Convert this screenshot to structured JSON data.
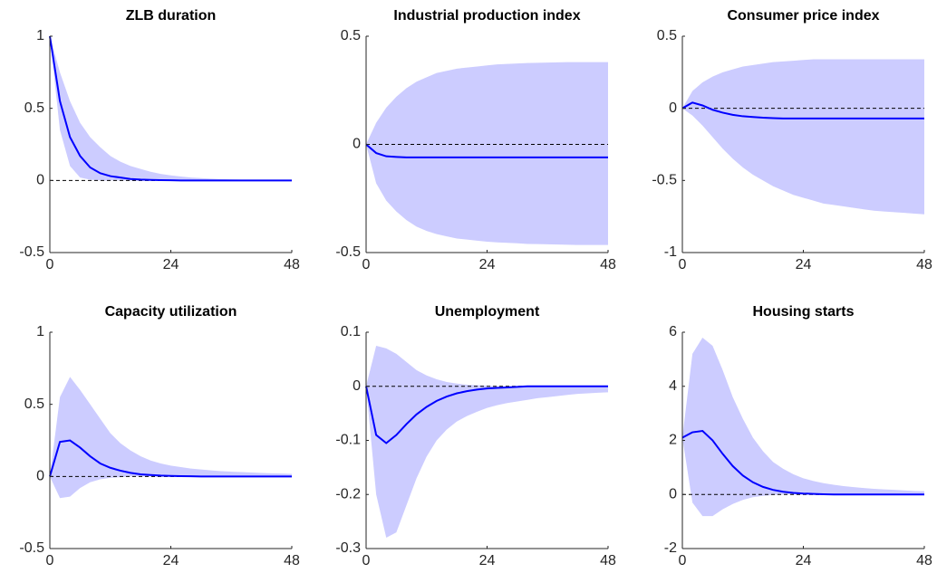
{
  "chart_data": [
    {
      "type": "line",
      "title": "ZLB duration",
      "color": "#0000ff",
      "band_color": "#ccccff",
      "hline": 0,
      "x": [
        0,
        2,
        4,
        6,
        8,
        10,
        12,
        14,
        16,
        18,
        20,
        22,
        24,
        26,
        28,
        30,
        32,
        34,
        36,
        38,
        40,
        42,
        44,
        46,
        48
      ],
      "values": [
        1,
        0.55,
        0.3,
        0.17,
        0.09,
        0.05,
        0.03,
        0.02,
        0.01,
        0.006,
        0.004,
        0.002,
        0.001,
        0,
        0,
        0,
        0,
        0,
        0,
        0,
        0,
        0,
        0,
        0,
        0
      ],
      "upper": [
        1,
        0.75,
        0.55,
        0.4,
        0.3,
        0.23,
        0.17,
        0.13,
        0.1,
        0.08,
        0.06,
        0.045,
        0.035,
        0.027,
        0.02,
        0.016,
        0.012,
        0.009,
        0.007,
        0.005,
        0.004,
        0.003,
        0.002,
        0.002,
        0.001
      ],
      "lower": [
        1,
        0.35,
        0.1,
        0.02,
        0.005,
        0,
        0,
        0,
        0,
        0,
        0,
        0,
        0,
        0,
        0,
        0,
        0,
        0,
        0,
        0,
        0,
        0,
        0,
        0,
        0
      ],
      "xlim": [
        0,
        48
      ],
      "xticks": [
        0,
        24,
        48
      ],
      "ylim": [
        -0.5,
        1
      ],
      "yticks": [
        -0.5,
        0,
        0.5,
        1
      ]
    },
    {
      "type": "line",
      "title": "Industrial production index",
      "color": "#0000ff",
      "band_color": "#ccccff",
      "hline": 0,
      "x": [
        0,
        2,
        4,
        6,
        8,
        10,
        12,
        14,
        16,
        18,
        20,
        22,
        24,
        26,
        28,
        30,
        32,
        34,
        36,
        38,
        40,
        42,
        44,
        46,
        48
      ],
      "values": [
        0,
        -0.04,
        -0.055,
        -0.058,
        -0.06,
        -0.06,
        -0.06,
        -0.06,
        -0.06,
        -0.06,
        -0.06,
        -0.06,
        -0.06,
        -0.06,
        -0.06,
        -0.06,
        -0.06,
        -0.06,
        -0.06,
        -0.06,
        -0.06,
        -0.06,
        -0.06,
        -0.06,
        -0.06
      ],
      "upper": [
        0,
        0.1,
        0.17,
        0.22,
        0.26,
        0.29,
        0.31,
        0.33,
        0.34,
        0.35,
        0.355,
        0.36,
        0.365,
        0.37,
        0.372,
        0.374,
        0.376,
        0.377,
        0.378,
        0.379,
        0.38,
        0.38,
        0.38,
        0.38,
        0.38
      ],
      "lower": [
        0,
        -0.18,
        -0.26,
        -0.31,
        -0.35,
        -0.38,
        -0.4,
        -0.415,
        -0.425,
        -0.435,
        -0.44,
        -0.445,
        -0.45,
        -0.453,
        -0.455,
        -0.457,
        -0.46,
        -0.461,
        -0.462,
        -0.463,
        -0.464,
        -0.465,
        -0.465,
        -0.465,
        -0.465
      ],
      "xlim": [
        0,
        48
      ],
      "xticks": [
        0,
        24,
        48
      ],
      "ylim": [
        -0.5,
        0.5
      ],
      "yticks": [
        -0.5,
        0,
        0.5
      ]
    },
    {
      "type": "line",
      "title": "Consumer price index",
      "color": "#0000ff",
      "band_color": "#ccccff",
      "hline": 0,
      "x": [
        0,
        2,
        4,
        6,
        8,
        10,
        12,
        14,
        16,
        18,
        20,
        22,
        24,
        26,
        28,
        30,
        32,
        34,
        36,
        38,
        40,
        42,
        44,
        46,
        48
      ],
      "values": [
        0,
        0.04,
        0.02,
        -0.01,
        -0.03,
        -0.045,
        -0.055,
        -0.06,
        -0.065,
        -0.068,
        -0.07,
        -0.07,
        -0.07,
        -0.07,
        -0.07,
        -0.07,
        -0.07,
        -0.07,
        -0.07,
        -0.07,
        -0.07,
        -0.07,
        -0.07,
        -0.07,
        -0.07
      ],
      "upper": [
        0,
        0.12,
        0.18,
        0.22,
        0.25,
        0.27,
        0.29,
        0.3,
        0.31,
        0.32,
        0.325,
        0.33,
        0.335,
        0.34,
        0.34,
        0.34,
        0.34,
        0.34,
        0.34,
        0.34,
        0.34,
        0.34,
        0.34,
        0.34,
        0.34
      ],
      "lower": [
        0,
        -0.05,
        -0.12,
        -0.2,
        -0.28,
        -0.35,
        -0.41,
        -0.46,
        -0.5,
        -0.54,
        -0.57,
        -0.6,
        -0.62,
        -0.64,
        -0.66,
        -0.67,
        -0.68,
        -0.69,
        -0.7,
        -0.71,
        -0.715,
        -0.72,
        -0.725,
        -0.73,
        -0.735
      ],
      "xlim": [
        0,
        48
      ],
      "xticks": [
        0,
        24,
        48
      ],
      "ylim": [
        -1,
        0.5
      ],
      "yticks": [
        -1,
        -0.5,
        0,
        0.5
      ]
    },
    {
      "type": "line",
      "title": "Capacity utilization",
      "color": "#0000ff",
      "band_color": "#ccccff",
      "hline": 0,
      "x": [
        0,
        2,
        4,
        6,
        8,
        10,
        12,
        14,
        16,
        18,
        20,
        22,
        24,
        26,
        28,
        30,
        32,
        34,
        36,
        38,
        40,
        42,
        44,
        46,
        48
      ],
      "values": [
        0,
        0.24,
        0.25,
        0.2,
        0.14,
        0.09,
        0.06,
        0.04,
        0.025,
        0.015,
        0.01,
        0.006,
        0.004,
        0.002,
        0.001,
        0,
        0,
        0,
        0,
        0,
        0,
        0,
        0,
        0,
        0
      ],
      "upper": [
        0,
        0.55,
        0.69,
        0.6,
        0.5,
        0.4,
        0.3,
        0.23,
        0.18,
        0.14,
        0.11,
        0.09,
        0.075,
        0.065,
        0.055,
        0.048,
        0.042,
        0.037,
        0.033,
        0.03,
        0.027,
        0.024,
        0.022,
        0.02,
        0.018
      ],
      "lower": [
        0,
        -0.15,
        -0.14,
        -0.08,
        -0.04,
        -0.02,
        -0.01,
        -0.005,
        0,
        0,
        0,
        0,
        0,
        0,
        0,
        0,
        0,
        0,
        0,
        0,
        0,
        0,
        0,
        0,
        0
      ],
      "xlim": [
        0,
        48
      ],
      "xticks": [
        0,
        24,
        48
      ],
      "ylim": [
        -0.5,
        1
      ],
      "yticks": [
        -0.5,
        0,
        0.5,
        1
      ]
    },
    {
      "type": "line",
      "title": "Unemployment",
      "color": "#0000ff",
      "band_color": "#ccccff",
      "hline": 0,
      "x": [
        0,
        2,
        4,
        6,
        8,
        10,
        12,
        14,
        16,
        18,
        20,
        22,
        24,
        26,
        28,
        30,
        32,
        34,
        36,
        38,
        40,
        42,
        44,
        46,
        48
      ],
      "values": [
        0,
        -0.09,
        -0.105,
        -0.09,
        -0.07,
        -0.052,
        -0.038,
        -0.027,
        -0.019,
        -0.013,
        -0.009,
        -0.006,
        -0.004,
        -0.003,
        -0.002,
        -0.001,
        0,
        0,
        0,
        0,
        0,
        0,
        0,
        0,
        0
      ],
      "upper": [
        0,
        0.075,
        0.07,
        0.06,
        0.045,
        0.03,
        0.02,
        0.013,
        0.008,
        0.005,
        0.003,
        0.002,
        0.001,
        0,
        0,
        0,
        0,
        0,
        0,
        0,
        0,
        0,
        0,
        0,
        0
      ],
      "lower": [
        0,
        -0.2,
        -0.28,
        -0.27,
        -0.22,
        -0.17,
        -0.13,
        -0.1,
        -0.08,
        -0.065,
        -0.055,
        -0.047,
        -0.04,
        -0.035,
        -0.031,
        -0.028,
        -0.025,
        -0.022,
        -0.02,
        -0.018,
        -0.016,
        -0.014,
        -0.013,
        -0.012,
        -0.011
      ],
      "xlim": [
        0,
        48
      ],
      "xticks": [
        0,
        24,
        48
      ],
      "ylim": [
        -0.3,
        0.1
      ],
      "yticks": [
        -0.3,
        -0.2,
        -0.1,
        0,
        0.1
      ]
    },
    {
      "type": "line",
      "title": "Housing starts",
      "color": "#0000ff",
      "band_color": "#ccccff",
      "hline": 0,
      "x": [
        0,
        2,
        4,
        6,
        8,
        10,
        12,
        14,
        16,
        18,
        20,
        22,
        24,
        26,
        28,
        30,
        32,
        34,
        36,
        38,
        40,
        42,
        44,
        46,
        48
      ],
      "values": [
        2.1,
        2.3,
        2.35,
        2.0,
        1.5,
        1.05,
        0.7,
        0.45,
        0.28,
        0.17,
        0.1,
        0.06,
        0.035,
        0.02,
        0.01,
        0,
        0,
        0,
        0,
        0,
        0,
        0,
        0,
        0,
        0
      ],
      "upper": [
        2.1,
        5.2,
        5.8,
        5.5,
        4.6,
        3.6,
        2.8,
        2.1,
        1.6,
        1.2,
        0.95,
        0.75,
        0.6,
        0.5,
        0.42,
        0.36,
        0.31,
        0.27,
        0.24,
        0.21,
        0.19,
        0.17,
        0.15,
        0.13,
        0.12
      ],
      "lower": [
        2.1,
        -0.3,
        -0.8,
        -0.8,
        -0.55,
        -0.35,
        -0.2,
        -0.1,
        -0.05,
        -0.02,
        0,
        0,
        0,
        0,
        0,
        0,
        0,
        0,
        0,
        0,
        0,
        0,
        0,
        0,
        0
      ],
      "xlim": [
        0,
        48
      ],
      "xticks": [
        0,
        24,
        48
      ],
      "ylim": [
        -2,
        6
      ],
      "yticks": [
        -2,
        0,
        2,
        4,
        6
      ]
    }
  ]
}
